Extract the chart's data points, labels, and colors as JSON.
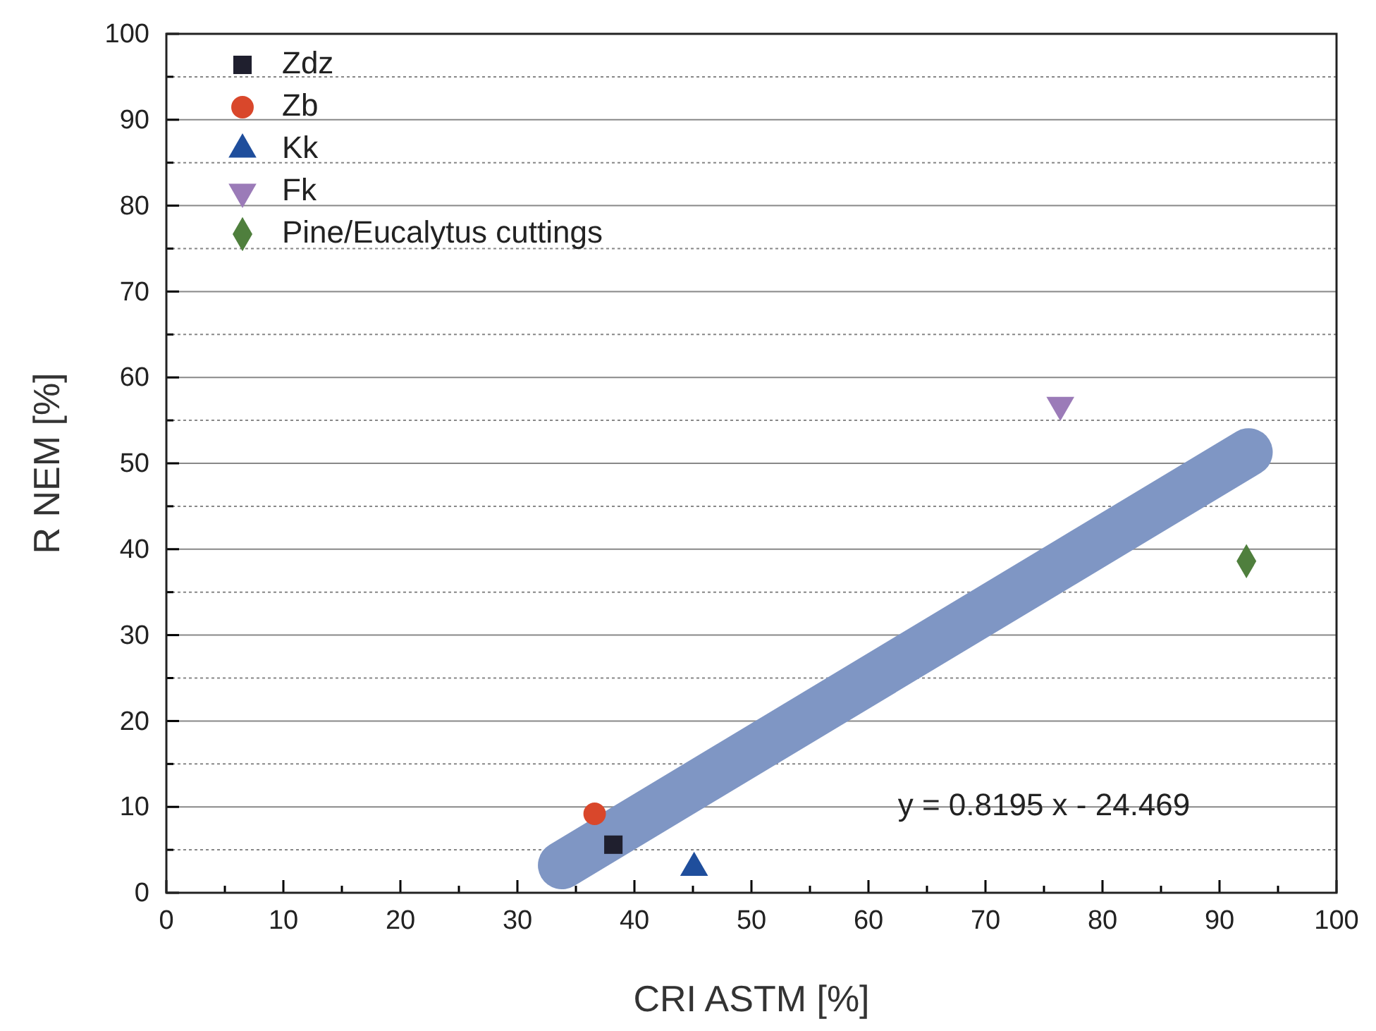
{
  "chart_data": {
    "type": "scatter",
    "xlabel": "CRI ASTM [%]",
    "ylabel": "R NEM [%]",
    "xlim": [
      0,
      100
    ],
    "ylim": [
      0,
      100
    ],
    "xticks": [
      0,
      {
        "value": 5,
        "label": null
      },
      10,
      {
        "value": 15,
        "label": null
      },
      20,
      {
        "value": 25,
        "label": null
      },
      30,
      {
        "value": 35,
        "label": null
      },
      40,
      {
        "value": 45,
        "label": null
      },
      50,
      {
        "value": 55,
        "label": null
      },
      60,
      {
        "value": 65,
        "label": null
      },
      70,
      {
        "value": 75,
        "label": null
      },
      80,
      {
        "value": 85,
        "label": null
      },
      90,
      {
        "value": 95,
        "label": null
      },
      100
    ],
    "yticks": [
      0,
      {
        "value": 5,
        "label": null
      },
      10,
      {
        "value": 15,
        "label": null
      },
      20,
      {
        "value": 25,
        "label": null
      },
      30,
      {
        "value": 35,
        "label": null
      },
      40,
      {
        "value": 45,
        "label": null
      },
      50,
      {
        "value": 55,
        "label": null
      },
      60,
      {
        "value": 65,
        "label": null
      },
      70,
      {
        "value": 75,
        "label": null
      },
      80,
      {
        "value": 85,
        "label": null
      },
      90,
      {
        "value": 95,
        "label": null
      },
      100
    ],
    "grid": "y",
    "legend": "top left",
    "series": [
      {
        "name": "Zdz",
        "color": "#1f1f2e",
        "marker": "square",
        "x": [
          38.2
        ],
        "values": [
          5.6
        ]
      },
      {
        "name": "Zb",
        "color": "#d9472b",
        "marker": "circle",
        "x": [
          36.6
        ],
        "values": [
          9.2
        ]
      },
      {
        "name": "Kk",
        "color": "#1f4e9c",
        "marker": "triangle",
        "x": [
          45.1
        ],
        "values": [
          2.9
        ]
      },
      {
        "name": "Fk",
        "color": "#9b7bb8",
        "marker": "triangle-down",
        "x": [
          76.4
        ],
        "values": [
          56.8
        ]
      },
      {
        "name": "Pine/Eucalytus cuttings",
        "color": "#4f7f3d",
        "marker": "diamond",
        "x": [
          92.3
        ],
        "values": [
          38.6
        ]
      },
      {
        "type": "line",
        "color": "#7f96c4",
        "x": [
          33.8,
          92.5
        ],
        "values": [
          3.2,
          51.3
        ]
      }
    ],
    "annotations": [
      "y = 0.8195 x - 24.469"
    ]
  }
}
